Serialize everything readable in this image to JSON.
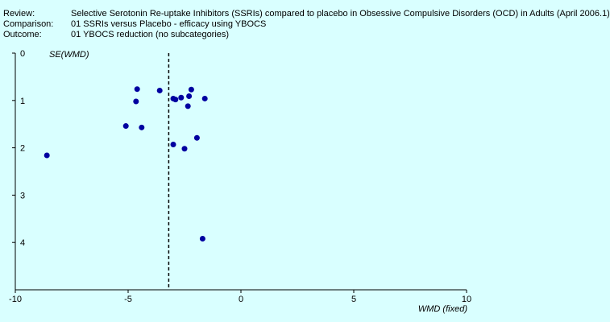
{
  "header": {
    "rows": [
      {
        "label": "Review:",
        "value": "Selective Serotonin Re-uptake Inhibitors (SSRIs) compared to placebo in Obsessive Compulsive Disorders (OCD) in Adults (April 2006.1)"
      },
      {
        "label": "Comparison:",
        "value": "01 SSRIs versus Placebo - efficacy using YBOCS"
      },
      {
        "label": "Outcome:",
        "value": "01 YBOCS reduction (no subcategories)"
      }
    ]
  },
  "chart_data": {
    "type": "scatter",
    "xlabel": "WMD (fixed)",
    "ylabel": "SE(WMD)",
    "xlim": [
      -10,
      10
    ],
    "ylim": [
      0,
      5
    ],
    "y_inverted": true,
    "x_ticks": [
      -10,
      -5,
      0,
      5,
      10
    ],
    "y_ticks": [
      0,
      1,
      2,
      3,
      4
    ],
    "reference_line_x": -3.2,
    "point_color": "#0000a0",
    "points": [
      {
        "x": -4.6,
        "y": 0.76
      },
      {
        "x": -3.6,
        "y": 0.79
      },
      {
        "x": -2.2,
        "y": 0.77
      },
      {
        "x": -2.3,
        "y": 0.91
      },
      {
        "x": -2.65,
        "y": 0.94
      },
      {
        "x": -3.0,
        "y": 0.96
      },
      {
        "x": -2.9,
        "y": 0.98
      },
      {
        "x": -1.6,
        "y": 0.96
      },
      {
        "x": -4.65,
        "y": 1.02
      },
      {
        "x": -2.35,
        "y": 1.12
      },
      {
        "x": -5.1,
        "y": 1.54
      },
      {
        "x": -4.4,
        "y": 1.57
      },
      {
        "x": -1.95,
        "y": 1.79
      },
      {
        "x": -3.0,
        "y": 1.93
      },
      {
        "x": -2.5,
        "y": 2.02
      },
      {
        "x": -8.6,
        "y": 2.16
      },
      {
        "x": -1.7,
        "y": 3.92
      }
    ]
  }
}
